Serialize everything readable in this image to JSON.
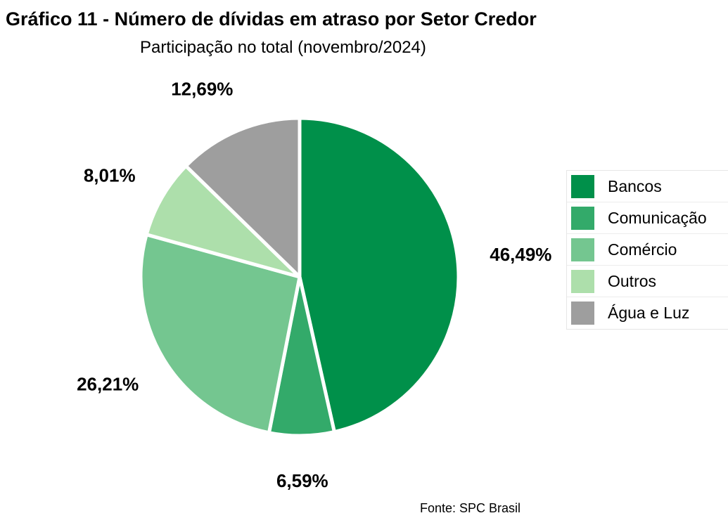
{
  "title": "Gráfico 11 - Número de dívidas em atraso por Setor Credor",
  "subtitle": "Participação no total (novembro/2024)",
  "source": "Fonte: SPC Brasil",
  "chart_data": {
    "type": "pie",
    "title": "Gráfico 11 - Número de dívidas em atraso por Setor Credor",
    "subtitle": "Participação no total (novembro/2024)",
    "unit": "%",
    "legend_position": "right",
    "slices": [
      {
        "name": "Bancos",
        "value": 46.49,
        "label": "46,49%",
        "color": "#00904a"
      },
      {
        "name": "Comunicação",
        "value": 6.59,
        "label": "6,59%",
        "color": "#33aa6a"
      },
      {
        "name": "Comércio",
        "value": 26.21,
        "label": "26,21%",
        "color": "#74c690"
      },
      {
        "name": "Outros",
        "value": 8.01,
        "label": "8,01%",
        "color": "#addfab"
      },
      {
        "name": "Água e Luz",
        "value": 12.69,
        "label": "12,69%",
        "color": "#9e9e9e"
      }
    ]
  }
}
